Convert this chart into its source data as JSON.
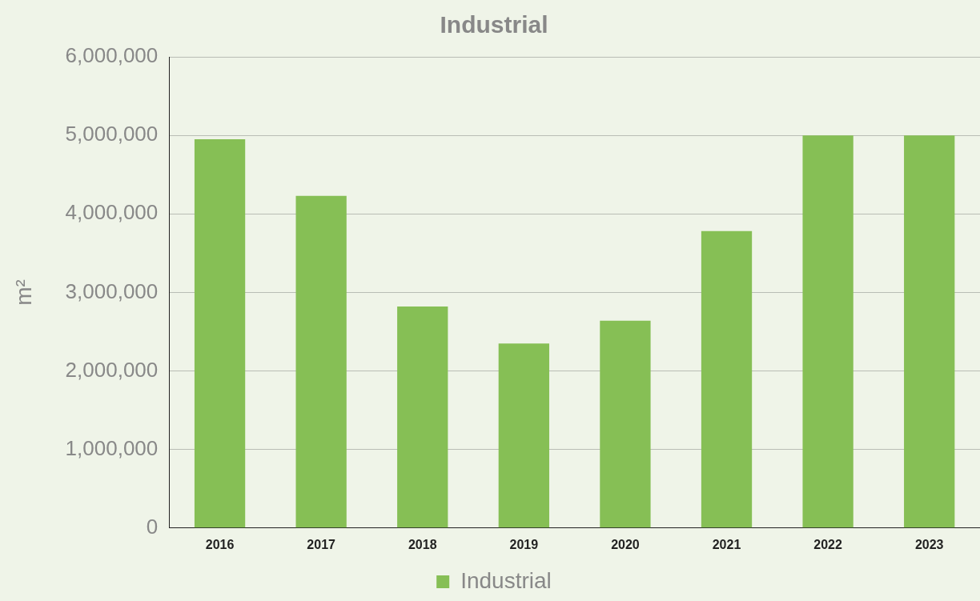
{
  "chart_data": {
    "type": "bar",
    "title": "Industrial",
    "ylabel": "m²",
    "categories": [
      "2016",
      "2017",
      "2018",
      "2019",
      "2020",
      "2021",
      "2022",
      "2023"
    ],
    "series": [
      {
        "name": "Industrial",
        "color": "#86bf55",
        "values": [
          4950000,
          4230000,
          2820000,
          2350000,
          2640000,
          3780000,
          5000000,
          5000000
        ]
      }
    ],
    "ylim": [
      0,
      6000000
    ],
    "yticks": [
      0,
      {
        "value": 1000000,
        "label": "1,000,000"
      },
      {
        "value": 2000000,
        "label": "2,000,000"
      },
      {
        "value": 3000000,
        "label": "3,000,000"
      },
      {
        "value": 4000000,
        "label": "4,000,000"
      },
      {
        "value": 5000000,
        "label": "5,000,000"
      },
      {
        "value": 6000000,
        "label": "6,000,000"
      }
    ],
    "grid": "y",
    "legend": "bottom"
  }
}
